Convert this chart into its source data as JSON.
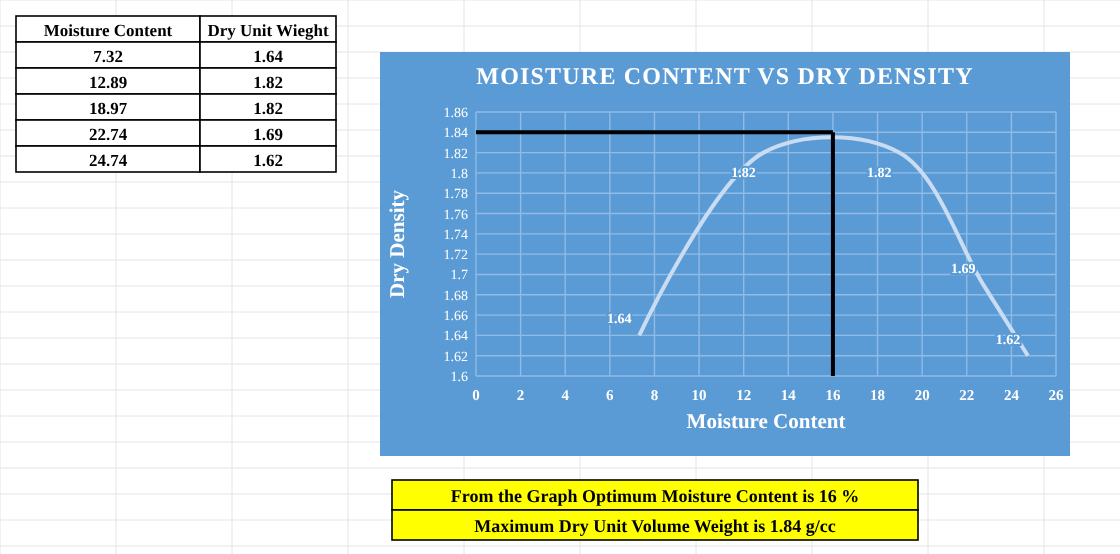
{
  "chart_data": [
    {
      "type": "other",
      "annotations": [
        "Moisture Content",
        "Dry Unit Wieght",
        "7.32",
        "1.64",
        "12.89",
        "1.82",
        "18.97",
        "1.82",
        "22.74",
        "1.69",
        "24.74",
        "1.62"
      ]
    },
    {
      "type": "line",
      "title": "MOISTURE CONTENT VS DRY DENSITY",
      "xlabel": "Moisture Content",
      "ylabel": "Dry Density",
      "x": [
        7.32,
        12.89,
        18.97,
        22.74,
        24.74
      ],
      "series": [
        {
          "color": "#c9dcf2",
          "values": [
            1.64,
            1.82,
            1.82,
            1.69,
            1.62
          ]
        }
      ],
      "xlim": [
        0,
        26
      ],
      "xticks": [
        0,
        2,
        4,
        6,
        8,
        10,
        12,
        14,
        16,
        18,
        20,
        22,
        24,
        26
      ],
      "ylim": [
        1.6,
        1.86
      ],
      "yticks": [
        1.6,
        1.62,
        1.64,
        1.66,
        1.68,
        1.7,
        1.72,
        1.74,
        1.76,
        1.78,
        1.8,
        1.82,
        1.84,
        1.86
      ],
      "grid": true,
      "marker": "none",
      "line_style": "solid",
      "data_labels": true,
      "ref_lines": [
        {
          "axis": "x",
          "value": 16,
          "color": "#000000"
        },
        {
          "axis": "y",
          "value": 1.84,
          "color": "#000000"
        }
      ],
      "annotations": [
        "From the Graph Optimum Moisture Content is 16 %",
        "Maximum Dry Unit Volume Weight is 1.84 g/cc"
      ]
    }
  ]
}
